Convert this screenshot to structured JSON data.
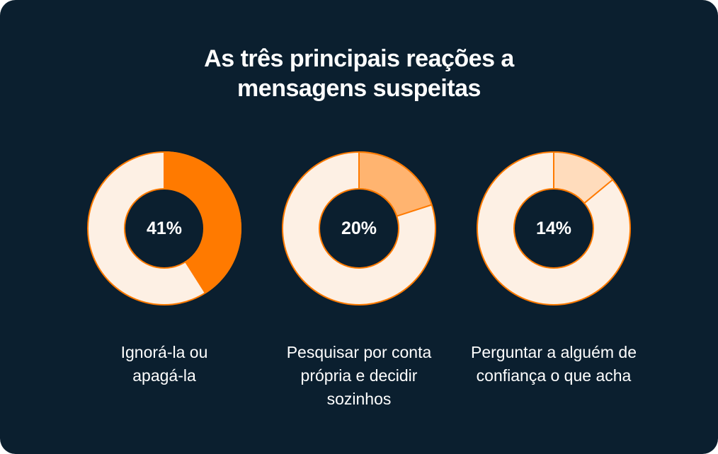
{
  "colors": {
    "background": "#0b1f2f",
    "track": "#fdf0e4",
    "outline": "#ff7a00",
    "slice_primary": "#ff7a00",
    "slice_light": "#ffb470",
    "slice_lighter": "#ffdcbc"
  },
  "title_lines": [
    "As três principais reações a",
    "mensagens suspeitas"
  ],
  "chart_data": {
    "type": "pie",
    "title": "As três principais reações a mensagens suspeitas",
    "charts": [
      {
        "value": 41,
        "value_label": "41%",
        "label_lines": [
          "Ignorá-la ou",
          "apagá-la"
        ]
      },
      {
        "value": 20,
        "value_label": "20%",
        "label_lines": [
          "Pesquisar por conta",
          "própria e decidir",
          "sozinhos"
        ]
      },
      {
        "value": 14,
        "value_label": "14%",
        "label_lines": [
          "Perguntar a alguém de",
          "confiança o que acha"
        ]
      }
    ]
  }
}
